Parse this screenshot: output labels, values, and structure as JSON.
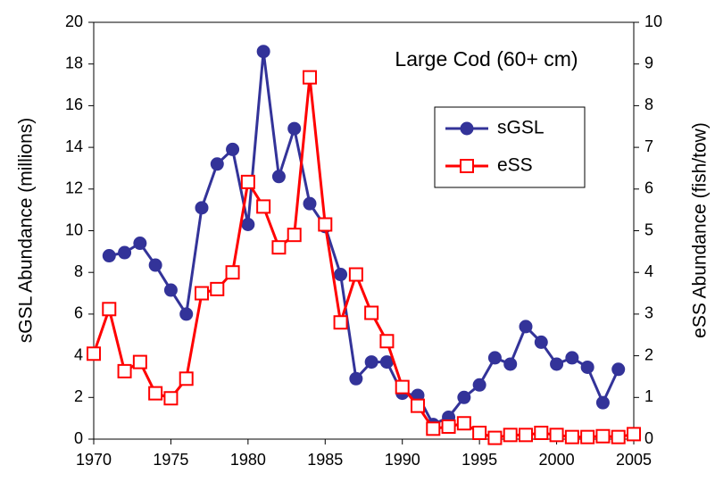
{
  "chart_data": {
    "type": "line",
    "annotation": "Large Cod (60+ cm)",
    "ylabel": "sGSL Abundance (millions)",
    "y2label": "eSS Abundance (fish/tow)",
    "xlim": [
      1970,
      2005
    ],
    "xticks": [
      1970,
      1975,
      1980,
      1985,
      1990,
      1995,
      2000,
      2005
    ],
    "ylim": [
      0,
      20
    ],
    "yticks": [
      0,
      2,
      4,
      6,
      8,
      10,
      12,
      14,
      16,
      18,
      20
    ],
    "y2lim": [
      0,
      10
    ],
    "y2ticks": [
      0,
      1,
      2,
      3,
      4,
      5,
      6,
      7,
      8,
      9,
      10
    ],
    "grid": false,
    "legend": "upper right",
    "series": [
      {
        "name": "sGSL",
        "color": "#333399",
        "marker": "circle",
        "x": [
          1971,
          1972,
          1973,
          1974,
          1975,
          1976,
          1977,
          1978,
          1979,
          1980,
          1981,
          1982,
          1983,
          1984,
          1985,
          1986,
          1987,
          1988,
          1989,
          1990,
          1991,
          1992,
          1993,
          1994,
          1995,
          1996,
          1997,
          1998,
          1999,
          2000,
          2001,
          2002,
          2003,
          2004
        ],
        "values": [
          8.8,
          8.95,
          9.4,
          8.35,
          7.15,
          6.0,
          11.1,
          13.2,
          13.9,
          10.3,
          18.6,
          12.6,
          14.9,
          11.3,
          10.2,
          7.9,
          2.9,
          3.7,
          3.7,
          2.2,
          2.1,
          0.7,
          1.05,
          2.0,
          2.6,
          3.9,
          3.6,
          5.4,
          4.65,
          3.6,
          3.9,
          3.45,
          1.75,
          3.35
        ]
      },
      {
        "name": "eSS",
        "color": "#ff0000",
        "marker": "square",
        "axis": "y2",
        "x": [
          1970,
          1971,
          1972,
          1973,
          1974,
          1975,
          1976,
          1977,
          1978,
          1979,
          1980,
          1981,
          1982,
          1983,
          1984,
          1985,
          1986,
          1987,
          1988,
          1989,
          1990,
          1991,
          1992,
          1993,
          1994,
          1995,
          1996,
          1997,
          1998,
          1999,
          2000,
          2001,
          2002,
          2003,
          2004,
          2005
        ],
        "values": [
          2.05,
          3.12,
          1.63,
          1.85,
          1.1,
          0.98,
          1.45,
          3.5,
          3.6,
          4.0,
          6.17,
          5.58,
          4.6,
          4.9,
          8.68,
          5.15,
          2.8,
          3.95,
          3.03,
          2.35,
          1.25,
          0.8,
          0.25,
          0.3,
          0.38,
          0.15,
          0.03,
          0.1,
          0.1,
          0.15,
          0.1,
          0.05,
          0.05,
          0.07,
          0.05,
          0.12
        ]
      }
    ]
  }
}
